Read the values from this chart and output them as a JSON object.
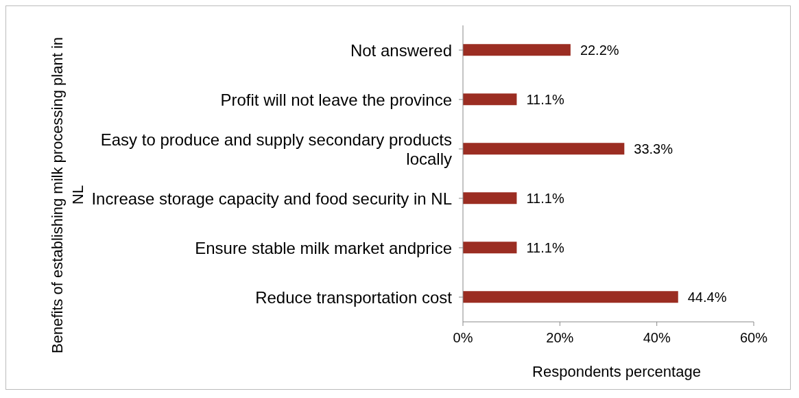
{
  "chart_data": {
    "type": "bar",
    "orientation": "horizontal",
    "xlabel": "Respondents percentage",
    "ylabel": "Benefits of establishing milk processing plant in NL",
    "categories": [
      "Not answered",
      "Profit will not leave the province",
      "Easy to produce and supply secondary products locally",
      "Increase storage capacity and food security in NL",
      "Ensure stable milk market andprice",
      "Reduce transportation cost"
    ],
    "values": [
      22.2,
      11.1,
      33.3,
      11.1,
      11.1,
      44.4
    ],
    "value_labels": [
      "22.2%",
      "11.1%",
      "33.3%",
      "11.1%",
      "11.1%",
      "44.4%"
    ],
    "color": "#9b2d22",
    "xlim": [
      0,
      60
    ],
    "xticks": [
      {
        "value": 0,
        "label": "0%"
      },
      {
        "value": 20,
        "label": "20%"
      },
      {
        "value": 40,
        "label": "40%"
      },
      {
        "value": 60,
        "label": "60%"
      }
    ],
    "grid": false,
    "legend": false
  }
}
